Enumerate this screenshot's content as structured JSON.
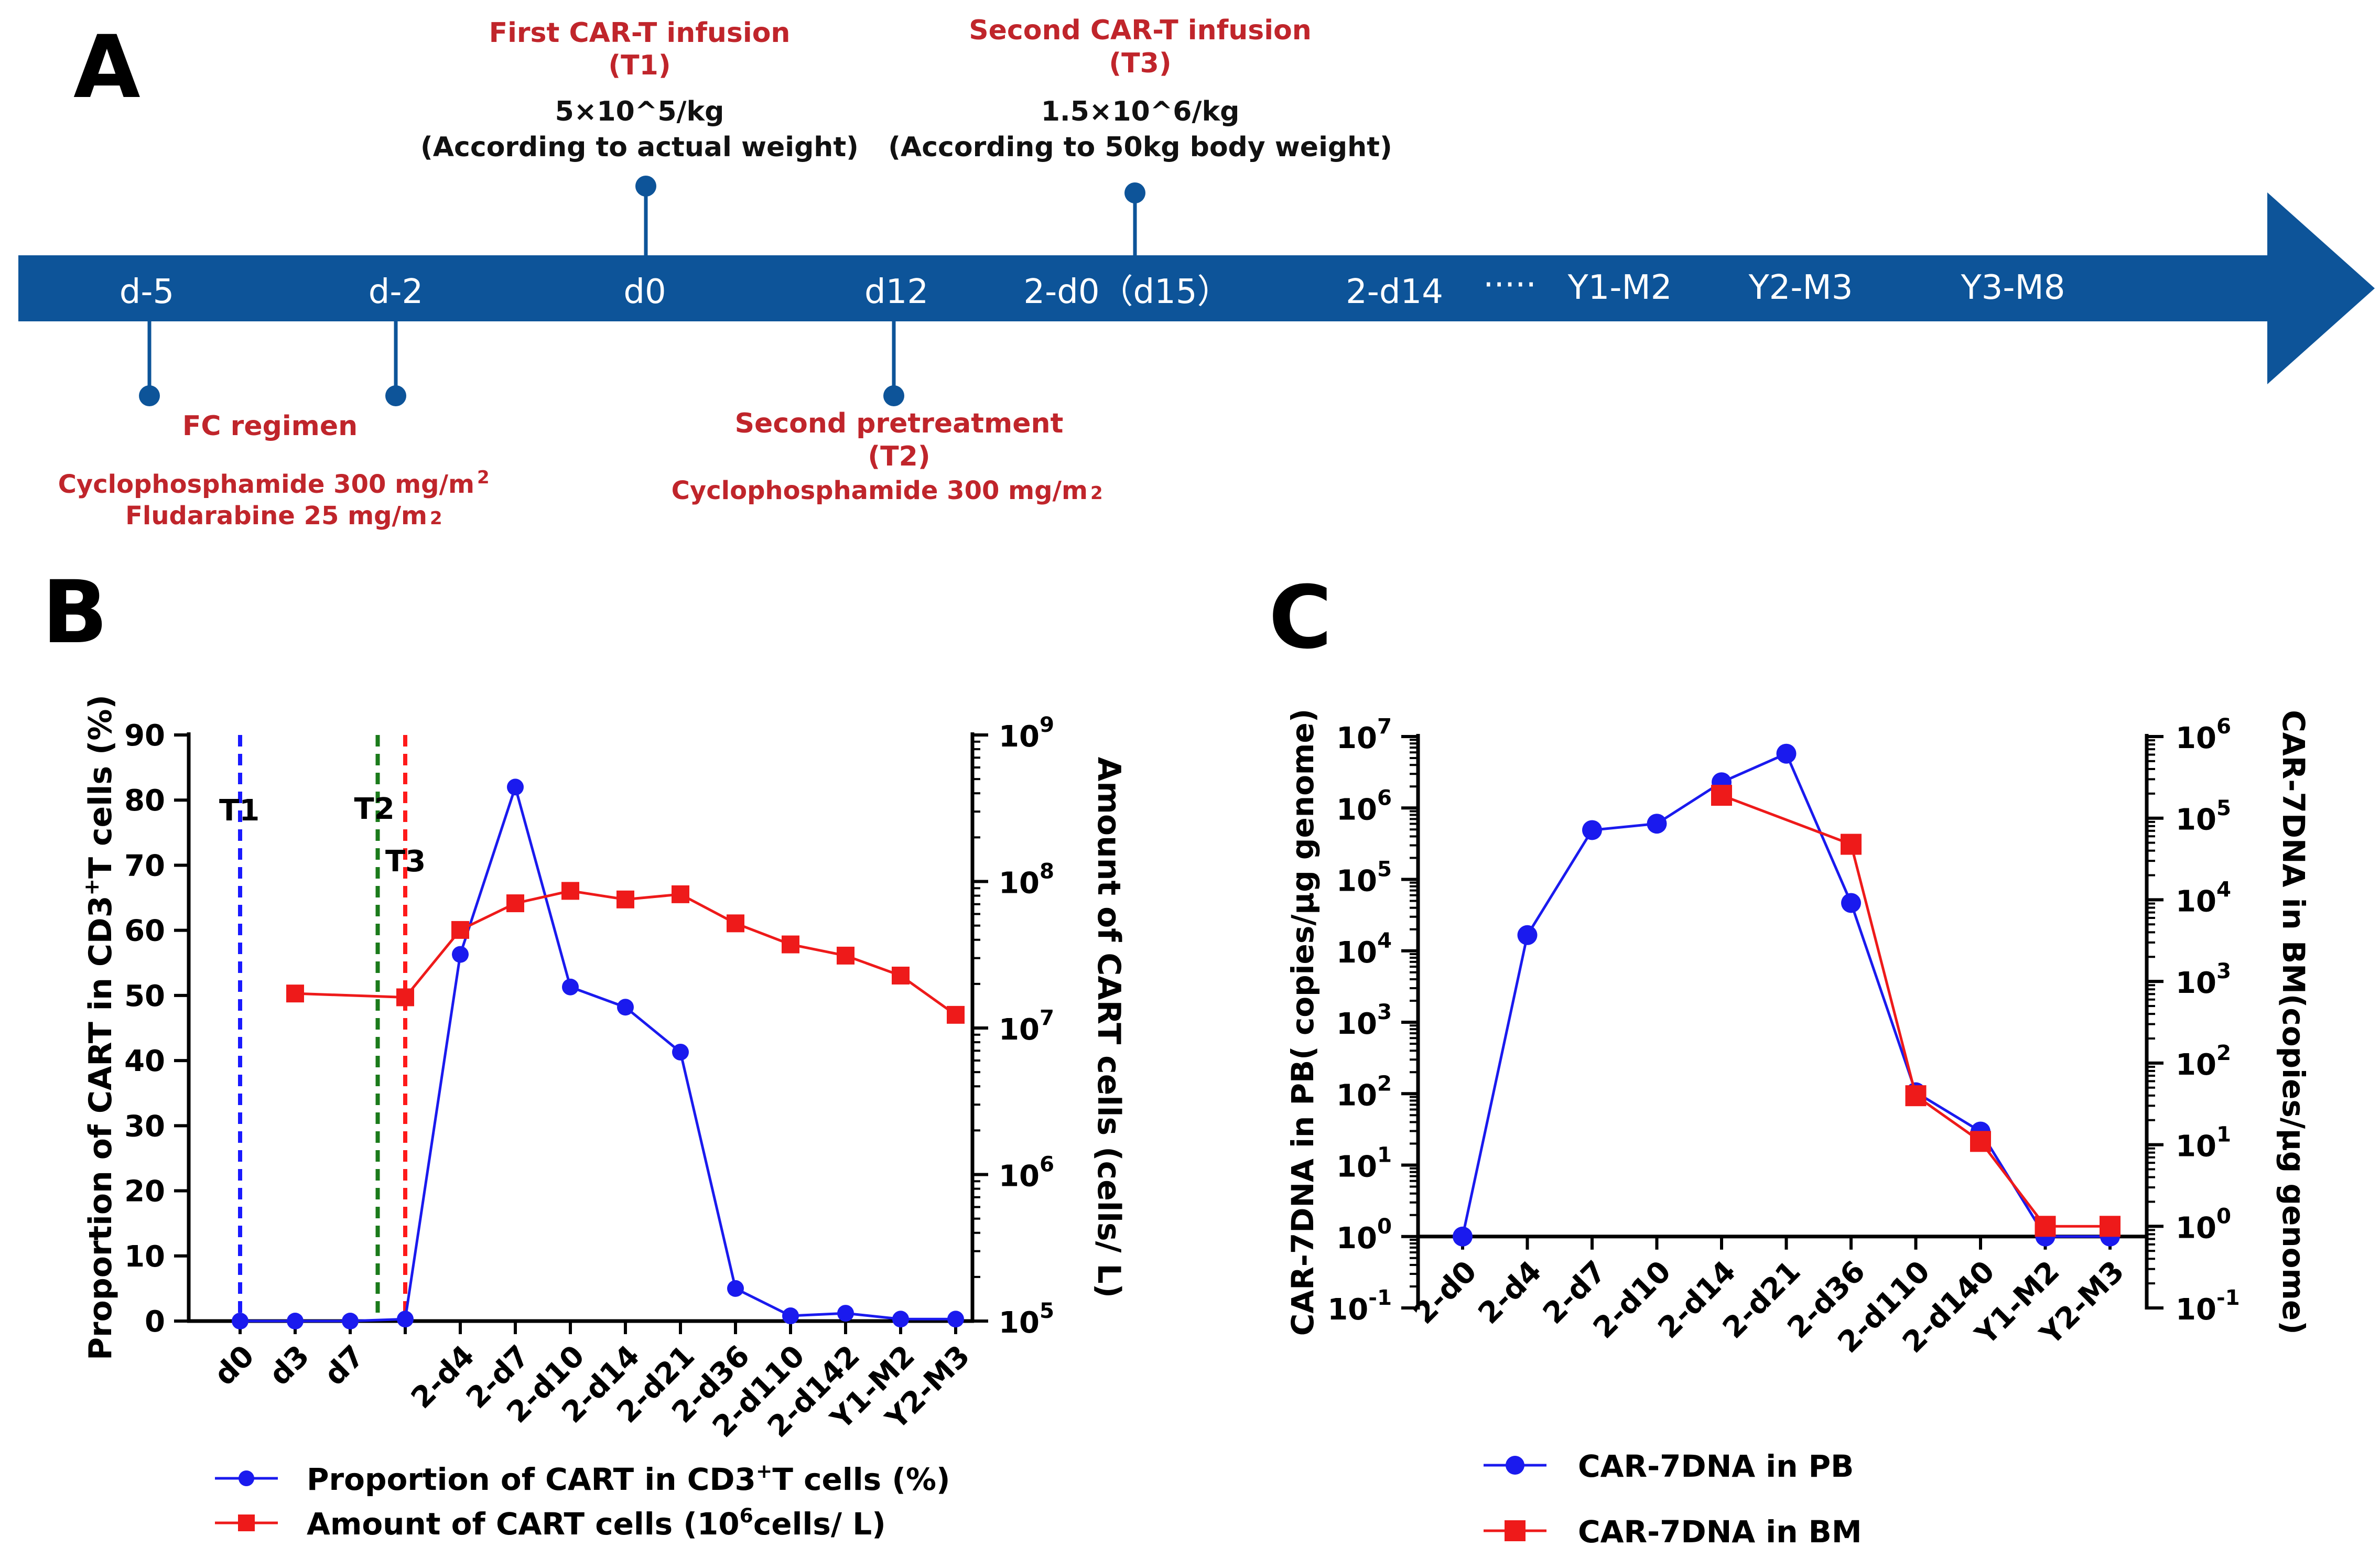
{
  "panels": {
    "a": "A",
    "b": "B",
    "c": "C"
  },
  "timeline": {
    "ticks": [
      "d-5",
      "d-2",
      "d0",
      "d12",
      "2-d0（d15）",
      "2-d14",
      "·····",
      "Y1-M2",
      "Y2-M3",
      "Y3-M8"
    ],
    "first_infusion": {
      "title": "First CAR-T infusion",
      "tag": "(T1)",
      "dose": "5×10^5/kg",
      "note": "(According to actual weight)"
    },
    "second_infusion": {
      "title": "Second CAR-T infusion",
      "tag": "(T3)",
      "dose": "1.5×10^6/kg",
      "note": "(According to 50kg body weight)"
    },
    "fc": {
      "title": "FC regimen",
      "drug1": "Cyclophosphamide 300 mg/m",
      "drug2": "Fludarabine 25 mg/m",
      "sup": "2"
    },
    "second_pre": {
      "title": "Second pretreatment",
      "tag": "(T2)",
      "drug": "Cyclophosphamide 300 mg/m",
      "sup": "2"
    },
    "colors": {
      "bar": "#0d5499",
      "red": "#c0252b"
    }
  },
  "chart_data": [
    {
      "type": "line",
      "panel": "B",
      "categories": [
        "d0",
        "d3",
        "d7",
        "",
        "2-d4",
        "2-d7",
        "2-d10",
        "2-d14",
        "2-d21",
        "2-d36",
        "2-d110",
        "2-d142",
        "Y1-M2",
        "Y2-M3"
      ],
      "ylabel_left_parts": [
        "Proportion of CART in CD3",
        "+",
        "T cells (%)"
      ],
      "ylabel_right": "Amount of CART cells (cells/ L)",
      "ylim_left": [
        0,
        90
      ],
      "yticks_left": [
        "0",
        "10",
        "20",
        "30",
        "40",
        "50",
        "60",
        "70",
        "80",
        "90"
      ],
      "ylim_right_log10": [
        5,
        9
      ],
      "yticks_right": [
        {
          "base": "10",
          "exp": "5"
        },
        {
          "base": "10",
          "exp": "6"
        },
        {
          "base": "10",
          "exp": "7"
        },
        {
          "base": "10",
          "exp": "8"
        },
        {
          "base": "10",
          "exp": "9"
        }
      ],
      "vlines": [
        {
          "label": "T1",
          "x": 0,
          "color": "#1a1aff"
        },
        {
          "label": "T2",
          "x": 2.5,
          "color": "#1a7a1a"
        },
        {
          "label": "T3",
          "x": 3,
          "color": "#ff1a1a"
        }
      ],
      "series": [
        {
          "name": "Proportion of CART in CD3+T cells (%)",
          "axis": "left",
          "color": "#1a1aee",
          "marker": "circle",
          "values": [
            0,
            0,
            0,
            0.3,
            56.3,
            82,
            51.3,
            48.2,
            41.3,
            5,
            0.8,
            1.2,
            0.3,
            0.3
          ]
        },
        {
          "name": "Amount of CART cells (10^6cells/ L)",
          "axis": "right",
          "color": "#ee1a1a",
          "marker": "square",
          "values": [
            null,
            17.2,
            null,
            16.2,
            46.7,
            71,
            86.3,
            75.4,
            81.8,
            51.8,
            37.2,
            31.2,
            22.8,
            12.3
          ]
        }
      ],
      "legend": [
        {
          "label_parts": [
            "Proportion of CART in CD3",
            "+",
            "T cells (%)"
          ],
          "color": "#1a1aee",
          "marker": "circle"
        },
        {
          "label_parts": [
            "Amount of CART cells (10",
            "6",
            "cells/ L)"
          ],
          "color": "#ee1a1a",
          "marker": "square"
        }
      ]
    },
    {
      "type": "line",
      "panel": "C",
      "categories": [
        "2-d0",
        "2-d4",
        "2-d7",
        "2-d10",
        "2-d14",
        "2-d21",
        "2-d36",
        "2-d110",
        "2-d140",
        "Y1-M2",
        "Y2-M3"
      ],
      "ylabel_left": "CAR-7DNA in PB( copies/μg genome)",
      "ylabel_right": "CAR-7DNA in BM(copies/μg genome)",
      "ylim_left_log10": [
        -1,
        7
      ],
      "ylim_right_log10": [
        -1,
        6
      ],
      "yticks_left": [
        {
          "base": "10",
          "exp": "7"
        },
        {
          "base": "10",
          "exp": "6"
        },
        {
          "base": "10",
          "exp": "5"
        },
        {
          "base": "10",
          "exp": "4"
        },
        {
          "base": "10",
          "exp": "3"
        },
        {
          "base": "10",
          "exp": "2"
        },
        {
          "base": "10",
          "exp": "1"
        },
        {
          "base": "10",
          "exp": "0"
        },
        {
          "base": "10",
          "exp": "-1"
        }
      ],
      "yticks_right": [
        {
          "base": "10",
          "exp": "6"
        },
        {
          "base": "10",
          "exp": "5"
        },
        {
          "base": "10",
          "exp": "4"
        },
        {
          "base": "10",
          "exp": "3"
        },
        {
          "base": "10",
          "exp": "2"
        },
        {
          "base": "10",
          "exp": "1"
        },
        {
          "base": "10",
          "exp": "0"
        },
        {
          "base": "10",
          "exp": "-1"
        }
      ],
      "series": [
        {
          "name": "CAR-7DNA in PB",
          "axis": "left",
          "color": "#1a1aee",
          "marker": "circle",
          "log10_values": [
            0,
            4.22,
            5.69,
            5.78,
            6.36,
            6.76,
            4.67,
            2.02,
            1.47,
            0,
            0
          ]
        },
        {
          "name": "CAR-7DNA  in BM",
          "axis": "right",
          "color": "#ee1a1a",
          "marker": "square",
          "log10_values": [
            null,
            null,
            null,
            null,
            5.28,
            null,
            4.68,
            1.6,
            1.04,
            0,
            0
          ]
        }
      ],
      "legend": [
        {
          "label": "CAR-7DNA in PB",
          "color": "#1a1aee",
          "marker": "circle"
        },
        {
          "label": "CAR-7DNA  in BM",
          "color": "#ee1a1a",
          "marker": "square"
        }
      ]
    }
  ]
}
